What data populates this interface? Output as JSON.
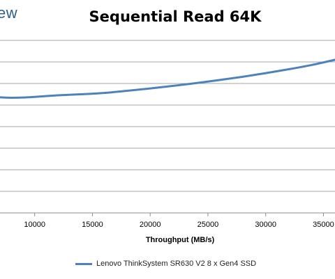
{
  "header": {
    "brand_fragment": "ew"
  },
  "chart_data": {
    "type": "line",
    "title": "Sequential Read 64K",
    "xlabel": "Throughput (MB/s)",
    "ylabel": "",
    "x_ticks": [
      10000,
      15000,
      20000,
      25000,
      30000,
      35000
    ],
    "x_tick_labels": [
      "10000",
      "15000",
      "20000",
      "25000",
      "30000",
      "35000"
    ],
    "xlim": [
      7000,
      36000
    ],
    "ylim": [
      0,
      8
    ],
    "grid": true,
    "legend_placement": "bottom",
    "series": [
      {
        "name": "Lenovo ThinkSystem SR630 V2 8 x Gen4 SSD",
        "color": "#4f81bd",
        "x": [
          7000,
          8000,
          9000,
          10000,
          12000,
          14000,
          16000,
          18000,
          20000,
          22000,
          24000,
          26000,
          28000,
          30000,
          32000,
          34000,
          36000
        ],
        "y": [
          5.36,
          5.34,
          5.35,
          5.38,
          5.45,
          5.5,
          5.56,
          5.66,
          5.77,
          5.89,
          6.02,
          6.16,
          6.31,
          6.48,
          6.66,
          6.86,
          7.1
        ]
      }
    ]
  }
}
